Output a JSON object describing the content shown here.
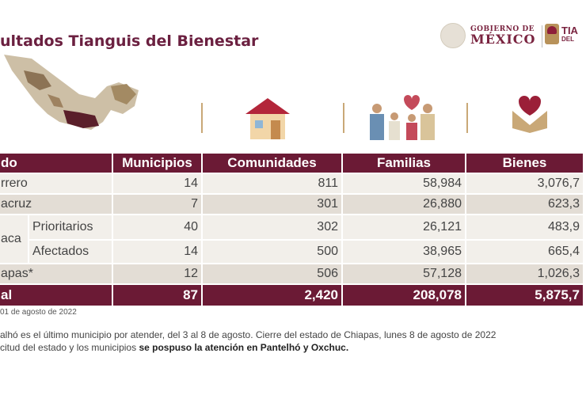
{
  "title": "ultados Tianguis del Bienestar",
  "logos": {
    "gobierno_line1": "GOBIERNO DE",
    "gobierno_line2": "MÉXICO",
    "tianguis_line1": "TIA",
    "tianguis_line2": "DEL"
  },
  "icons": [
    "mexico-map",
    "house-icon",
    "family-icon",
    "heart-hands-icon"
  ],
  "colors": {
    "maroon": "#6b1a35",
    "gold": "#c9a877"
  },
  "table": {
    "headers": [
      "do",
      "Municipios",
      "Comunidades",
      "Familias",
      "Bienes"
    ],
    "rows": [
      {
        "estado": "rrero",
        "sub": "",
        "municipios": "14",
        "comunidades": "811",
        "familias": "58,984",
        "bienes": "3,076,7"
      },
      {
        "estado": "acruz",
        "sub": "",
        "municipios": "7",
        "comunidades": "301",
        "familias": "26,880",
        "bienes": "623,3"
      },
      {
        "estado": "aca",
        "sub": "Prioritarios",
        "municipios": "40",
        "comunidades": "302",
        "familias": "26,121",
        "bienes": "483,9"
      },
      {
        "estado": "",
        "sub": "Afectados",
        "municipios": "14",
        "comunidades": "500",
        "familias": "38,965",
        "bienes": "665,4"
      },
      {
        "estado": "apas*",
        "sub": "",
        "municipios": "12",
        "comunidades": "506",
        "familias": "57,128",
        "bienes": "1,026,3"
      }
    ],
    "total": {
      "label": "al",
      "municipios": "87",
      "comunidades": "2,420",
      "familias": "208,078",
      "bienes": "5,875,7"
    }
  },
  "footnote": "01 de agosto de 2022",
  "note1": "alhó es el último municipio por atender, del 3 al 8 de agosto. Cierre del estado de Chiapas, lunes 8 de agosto de 2022",
  "note2_plain": "citud del estado y los municipios ",
  "note2_bold": "se pospuso la atención en Pantelhó y Oxchuc."
}
